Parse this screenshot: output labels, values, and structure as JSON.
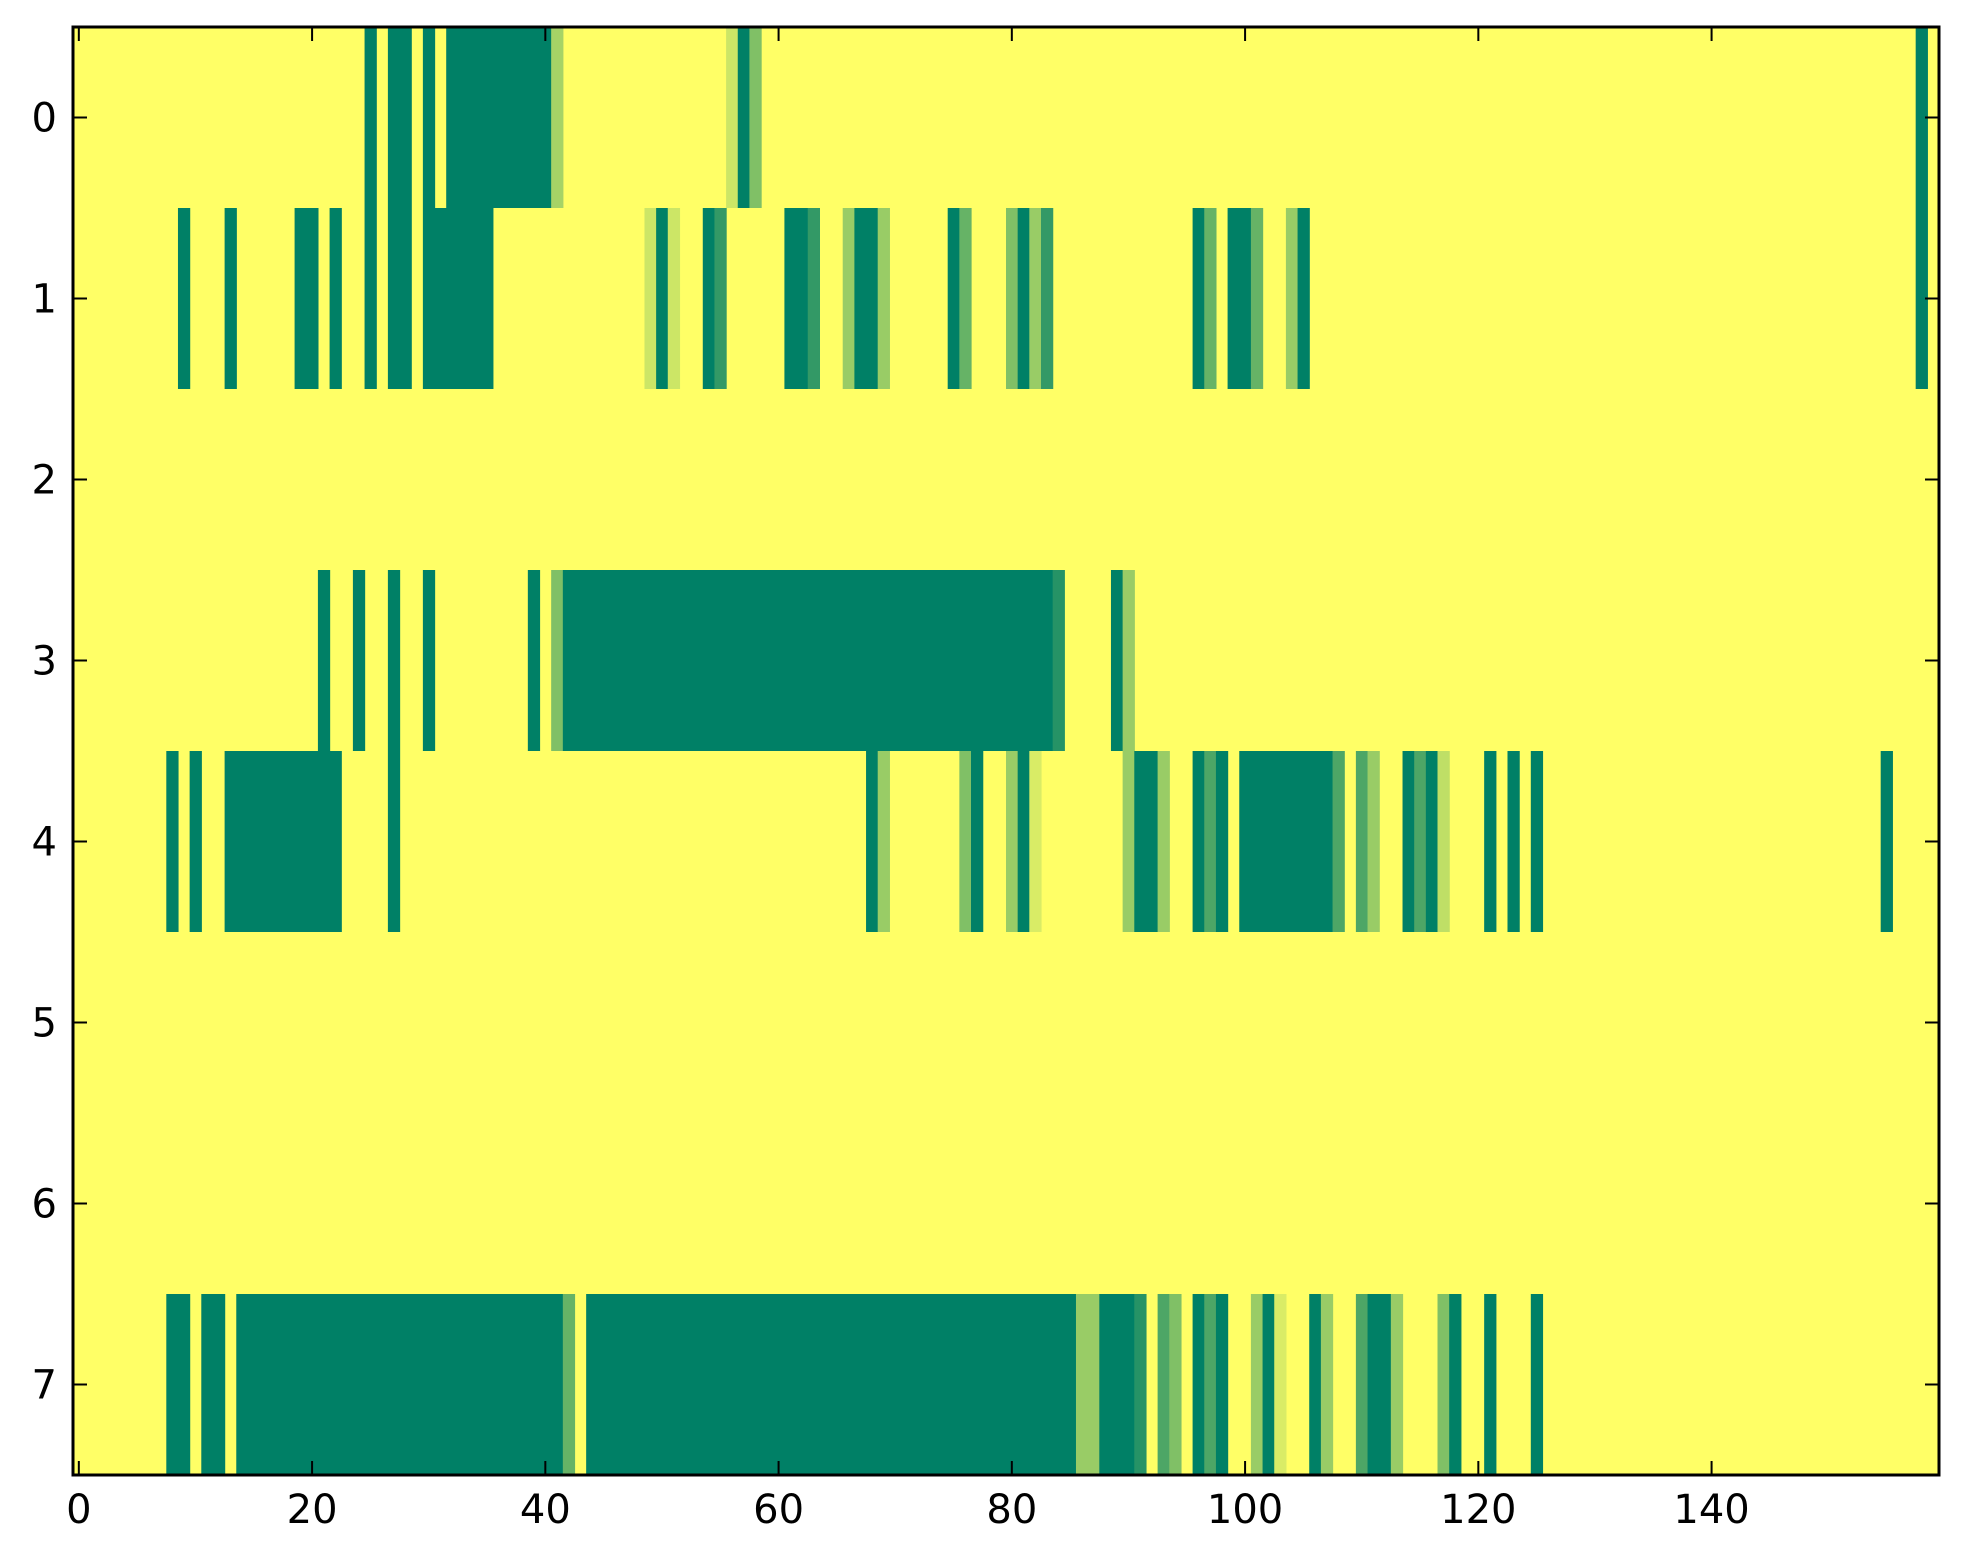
{
  "chart_data": {
    "type": "heatmap",
    "title": "",
    "xlabel": "",
    "ylabel": "",
    "xlim": [
      -0.5,
      159.5
    ],
    "ylim": [
      -0.5,
      7.5
    ],
    "x_ticks": [
      0,
      20,
      40,
      60,
      80,
      100,
      120,
      140
    ],
    "y_ticks": [
      0,
      1,
      2,
      3,
      4,
      5,
      6,
      7
    ],
    "x_tick_labels": [
      "0",
      "20",
      "40",
      "60",
      "80",
      "100",
      "120",
      "140"
    ],
    "y_tick_labels": [
      "0",
      "1",
      "2",
      "3",
      "4",
      "5",
      "6",
      "7"
    ],
    "grid": false,
    "colormap": "summer_r",
    "colors": {
      "background": "#ffff66",
      "min": "#ffff66",
      "max": "#008066",
      "axis": "#000000"
    },
    "n_columns": 160,
    "rows": [
      [
        [
          25,
          1
        ],
        [
          27,
          1
        ],
        [
          28,
          1
        ],
        [
          30,
          1
        ],
        [
          32,
          1
        ],
        [
          33,
          1
        ],
        [
          34,
          1
        ],
        [
          35,
          1
        ],
        [
          36,
          1
        ],
        [
          37,
          1
        ],
        [
          38,
          1
        ],
        [
          39,
          1
        ],
        [
          40,
          1
        ],
        [
          41,
          0.35
        ],
        [
          56,
          0.2
        ],
        [
          57,
          1
        ],
        [
          58,
          0.5
        ],
        [
          158,
          1
        ]
      ],
      [
        [
          9,
          1
        ],
        [
          13,
          1
        ],
        [
          19,
          1
        ],
        [
          20,
          1
        ],
        [
          22,
          1
        ],
        [
          25,
          1
        ],
        [
          27,
          1
        ],
        [
          28,
          1
        ],
        [
          30,
          1
        ],
        [
          31,
          1
        ],
        [
          32,
          1
        ],
        [
          33,
          1
        ],
        [
          34,
          1
        ],
        [
          35,
          1
        ],
        [
          49,
          0.2
        ],
        [
          50,
          1
        ],
        [
          51,
          0.2
        ],
        [
          54,
          1
        ],
        [
          55,
          0.8
        ],
        [
          61,
          1
        ],
        [
          62,
          1
        ],
        [
          63,
          0.8
        ],
        [
          66,
          0.4
        ],
        [
          67,
          1
        ],
        [
          68,
          1
        ],
        [
          69,
          0.4
        ],
        [
          75,
          1
        ],
        [
          76,
          0.6
        ],
        [
          80,
          0.5
        ],
        [
          81,
          1
        ],
        [
          82,
          0.4
        ],
        [
          83,
          0.8
        ],
        [
          96,
          1
        ],
        [
          97,
          0.6
        ],
        [
          99,
          1
        ],
        [
          100,
          1
        ],
        [
          101,
          0.6
        ],
        [
          104,
          0.4
        ],
        [
          105,
          1
        ],
        [
          158,
          1
        ]
      ],
      [],
      [
        [
          21,
          1
        ],
        [
          24,
          1
        ],
        [
          27,
          1
        ],
        [
          30,
          1
        ],
        [
          39,
          1
        ],
        [
          41,
          0.5
        ],
        [
          42,
          1
        ],
        [
          43,
          1
        ],
        [
          44,
          1
        ],
        [
          45,
          1
        ],
        [
          46,
          1
        ],
        [
          47,
          1
        ],
        [
          48,
          1
        ],
        [
          49,
          1
        ],
        [
          50,
          1
        ],
        [
          51,
          1
        ],
        [
          52,
          1
        ],
        [
          53,
          1
        ],
        [
          54,
          1
        ],
        [
          55,
          1
        ],
        [
          56,
          1
        ],
        [
          57,
          1
        ],
        [
          58,
          1
        ],
        [
          59,
          1
        ],
        [
          60,
          1
        ],
        [
          61,
          1
        ],
        [
          62,
          1
        ],
        [
          63,
          1
        ],
        [
          64,
          1
        ],
        [
          65,
          1
        ],
        [
          66,
          1
        ],
        [
          67,
          1
        ],
        [
          68,
          1
        ],
        [
          69,
          1
        ],
        [
          70,
          1
        ],
        [
          71,
          1
        ],
        [
          72,
          1
        ],
        [
          73,
          1
        ],
        [
          74,
          1
        ],
        [
          75,
          1
        ],
        [
          76,
          1
        ],
        [
          77,
          1
        ],
        [
          78,
          1
        ],
        [
          79,
          1
        ],
        [
          80,
          1
        ],
        [
          81,
          1
        ],
        [
          82,
          1
        ],
        [
          83,
          1
        ],
        [
          84,
          0.85
        ],
        [
          89,
          1
        ],
        [
          90,
          0.4
        ]
      ],
      [
        [
          8,
          1
        ],
        [
          10,
          1
        ],
        [
          13,
          1
        ],
        [
          14,
          1
        ],
        [
          15,
          1
        ],
        [
          16,
          1
        ],
        [
          17,
          1
        ],
        [
          18,
          1
        ],
        [
          19,
          1
        ],
        [
          20,
          1
        ],
        [
          21,
          1
        ],
        [
          22,
          1
        ],
        [
          27,
          1
        ],
        [
          68,
          1
        ],
        [
          69,
          0.4
        ],
        [
          76,
          0.5
        ],
        [
          77,
          1
        ],
        [
          80,
          0.4
        ],
        [
          81,
          1
        ],
        [
          82,
          0.15
        ],
        [
          90,
          0.4
        ],
        [
          91,
          1
        ],
        [
          92,
          1
        ],
        [
          93,
          0.4
        ],
        [
          96,
          1
        ],
        [
          97,
          0.7
        ],
        [
          98,
          1
        ],
        [
          100,
          1
        ],
        [
          101,
          1
        ],
        [
          102,
          1
        ],
        [
          103,
          1
        ],
        [
          104,
          1
        ],
        [
          105,
          1
        ],
        [
          106,
          1
        ],
        [
          107,
          1
        ],
        [
          108,
          0.7
        ],
        [
          110,
          0.7
        ],
        [
          111,
          0.4
        ],
        [
          114,
          1
        ],
        [
          115,
          0.7
        ],
        [
          116,
          1
        ],
        [
          117,
          0.25
        ],
        [
          121,
          1
        ],
        [
          123,
          1
        ],
        [
          125,
          1
        ],
        [
          155,
          1
        ]
      ],
      [],
      [],
      [
        [
          8,
          1
        ],
        [
          9,
          1
        ],
        [
          11,
          1
        ],
        [
          12,
          1
        ],
        [
          14,
          1
        ],
        [
          15,
          1
        ],
        [
          16,
          1
        ],
        [
          17,
          1
        ],
        [
          18,
          1
        ],
        [
          19,
          1
        ],
        [
          20,
          1
        ],
        [
          21,
          1
        ],
        [
          22,
          1
        ],
        [
          23,
          1
        ],
        [
          24,
          1
        ],
        [
          25,
          1
        ],
        [
          26,
          1
        ],
        [
          27,
          1
        ],
        [
          28,
          1
        ],
        [
          29,
          1
        ],
        [
          30,
          1
        ],
        [
          31,
          1
        ],
        [
          32,
          1
        ],
        [
          33,
          1
        ],
        [
          34,
          1
        ],
        [
          35,
          1
        ],
        [
          36,
          1
        ],
        [
          37,
          1
        ],
        [
          38,
          1
        ],
        [
          39,
          1
        ],
        [
          40,
          1
        ],
        [
          41,
          1
        ],
        [
          42,
          0.6
        ],
        [
          44,
          1
        ],
        [
          45,
          1
        ],
        [
          46,
          1
        ],
        [
          47,
          1
        ],
        [
          48,
          1
        ],
        [
          49,
          1
        ],
        [
          50,
          1
        ],
        [
          51,
          1
        ],
        [
          52,
          1
        ],
        [
          53,
          1
        ],
        [
          54,
          1
        ],
        [
          55,
          1
        ],
        [
          56,
          1
        ],
        [
          57,
          1
        ],
        [
          58,
          1
        ],
        [
          59,
          1
        ],
        [
          60,
          1
        ],
        [
          61,
          1
        ],
        [
          62,
          1
        ],
        [
          63,
          1
        ],
        [
          64,
          1
        ],
        [
          65,
          1
        ],
        [
          66,
          1
        ],
        [
          67,
          1
        ],
        [
          68,
          1
        ],
        [
          69,
          1
        ],
        [
          70,
          1
        ],
        [
          71,
          1
        ],
        [
          72,
          1
        ],
        [
          73,
          1
        ],
        [
          74,
          1
        ],
        [
          75,
          1
        ],
        [
          76,
          1
        ],
        [
          77,
          1
        ],
        [
          78,
          1
        ],
        [
          79,
          1
        ],
        [
          80,
          1
        ],
        [
          81,
          1
        ],
        [
          82,
          1
        ],
        [
          83,
          1
        ],
        [
          84,
          1
        ],
        [
          85,
          1
        ],
        [
          86,
          0.4
        ],
        [
          87,
          0.4
        ],
        [
          88,
          1
        ],
        [
          89,
          1
        ],
        [
          90,
          1
        ],
        [
          91,
          0.85
        ],
        [
          93,
          0.7
        ],
        [
          94,
          0.5
        ],
        [
          96,
          1
        ],
        [
          97,
          0.7
        ],
        [
          98,
          1
        ],
        [
          101,
          0.4
        ],
        [
          102,
          1
        ],
        [
          103,
          0.15
        ],
        [
          106,
          1
        ],
        [
          107,
          0.4
        ],
        [
          110,
          0.7
        ],
        [
          111,
          1
        ],
        [
          112,
          1
        ],
        [
          113,
          0.4
        ],
        [
          117,
          0.5
        ],
        [
          118,
          1
        ],
        [
          121,
          1
        ],
        [
          125,
          1
        ]
      ]
    ]
  }
}
